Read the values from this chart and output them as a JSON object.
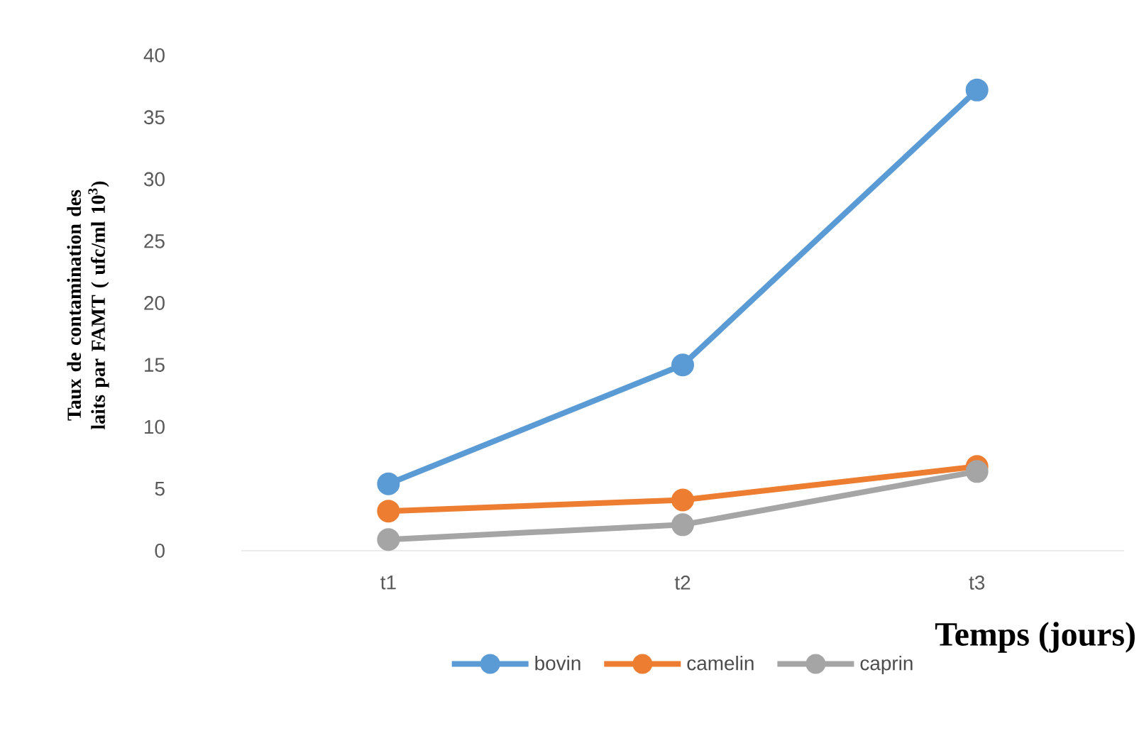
{
  "chart_data": {
    "type": "line",
    "xlabel": "Temps (jours)",
    "ylabel": "Taux de contamination des laits par FAMT ( ufc/ml 10$^{3}$)",
    "categories": [
      "t1",
      "t2",
      "t3"
    ],
    "series": [
      {
        "name": "bovin",
        "color": "#5b9bd5",
        "values": [
          5.4,
          15.0,
          37.2
        ]
      },
      {
        "name": "camelin",
        "color": "#ed7d31",
        "values": [
          3.2,
          4.1,
          6.8
        ]
      },
      {
        "name": "caprin",
        "color": "#a5a5a5",
        "values": [
          0.9,
          2.1,
          6.4
        ]
      }
    ],
    "ylim": [
      0,
      40
    ],
    "yticks": [
      0,
      5,
      10,
      15,
      20,
      25,
      30,
      35,
      40
    ],
    "grid": false,
    "legend": "bottom",
    "marker": "circle",
    "line_style": "solid"
  }
}
